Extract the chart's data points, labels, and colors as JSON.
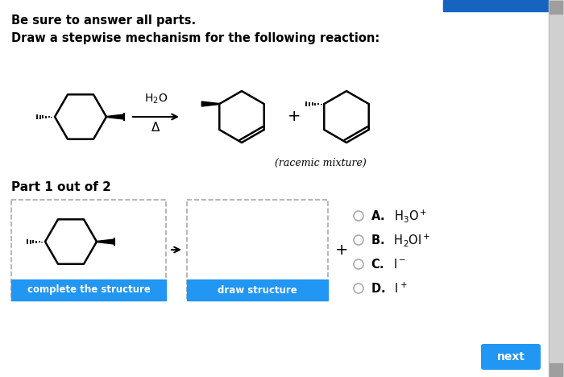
{
  "bg_color": "#ffffff",
  "title1": "Be sure to answer all parts.",
  "title2": "Draw a stepwise mechanism for the following reaction:",
  "part_label": "Part 1 out of 2",
  "racemic_text": "(racemic mixture)",
  "btn1_text": "complete the structure",
  "btn2_text": "draw structure",
  "btn_color": "#2196F3",
  "btn_text_color": "#ffffff",
  "dashed_border_color": "#aaaaaa",
  "top_bar_color": "#1565C0",
  "scroll_bg": "#d0d0d0",
  "scroll_thumb": "#9e9e9e"
}
